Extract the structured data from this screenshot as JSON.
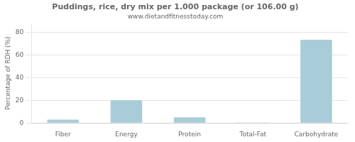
{
  "chart_data": {
    "type": "bar",
    "title": "Puddings, rice, dry mix per 1.000 package (or 106.00 g)",
    "subtitle": "www.dietandfitnesstoday.com",
    "categories": [
      "Fiber",
      "Energy",
      "Protein",
      "Total-Fat",
      "Carbohydrate"
    ],
    "values": [
      3,
      20,
      5,
      0.5,
      73.5
    ],
    "color": "#a8cdd8",
    "ylabel": "Percentage of RDH (%)",
    "ylim": [
      0,
      88
    ],
    "yticks": [
      0,
      20,
      40,
      60,
      80
    ],
    "grid": true
  }
}
